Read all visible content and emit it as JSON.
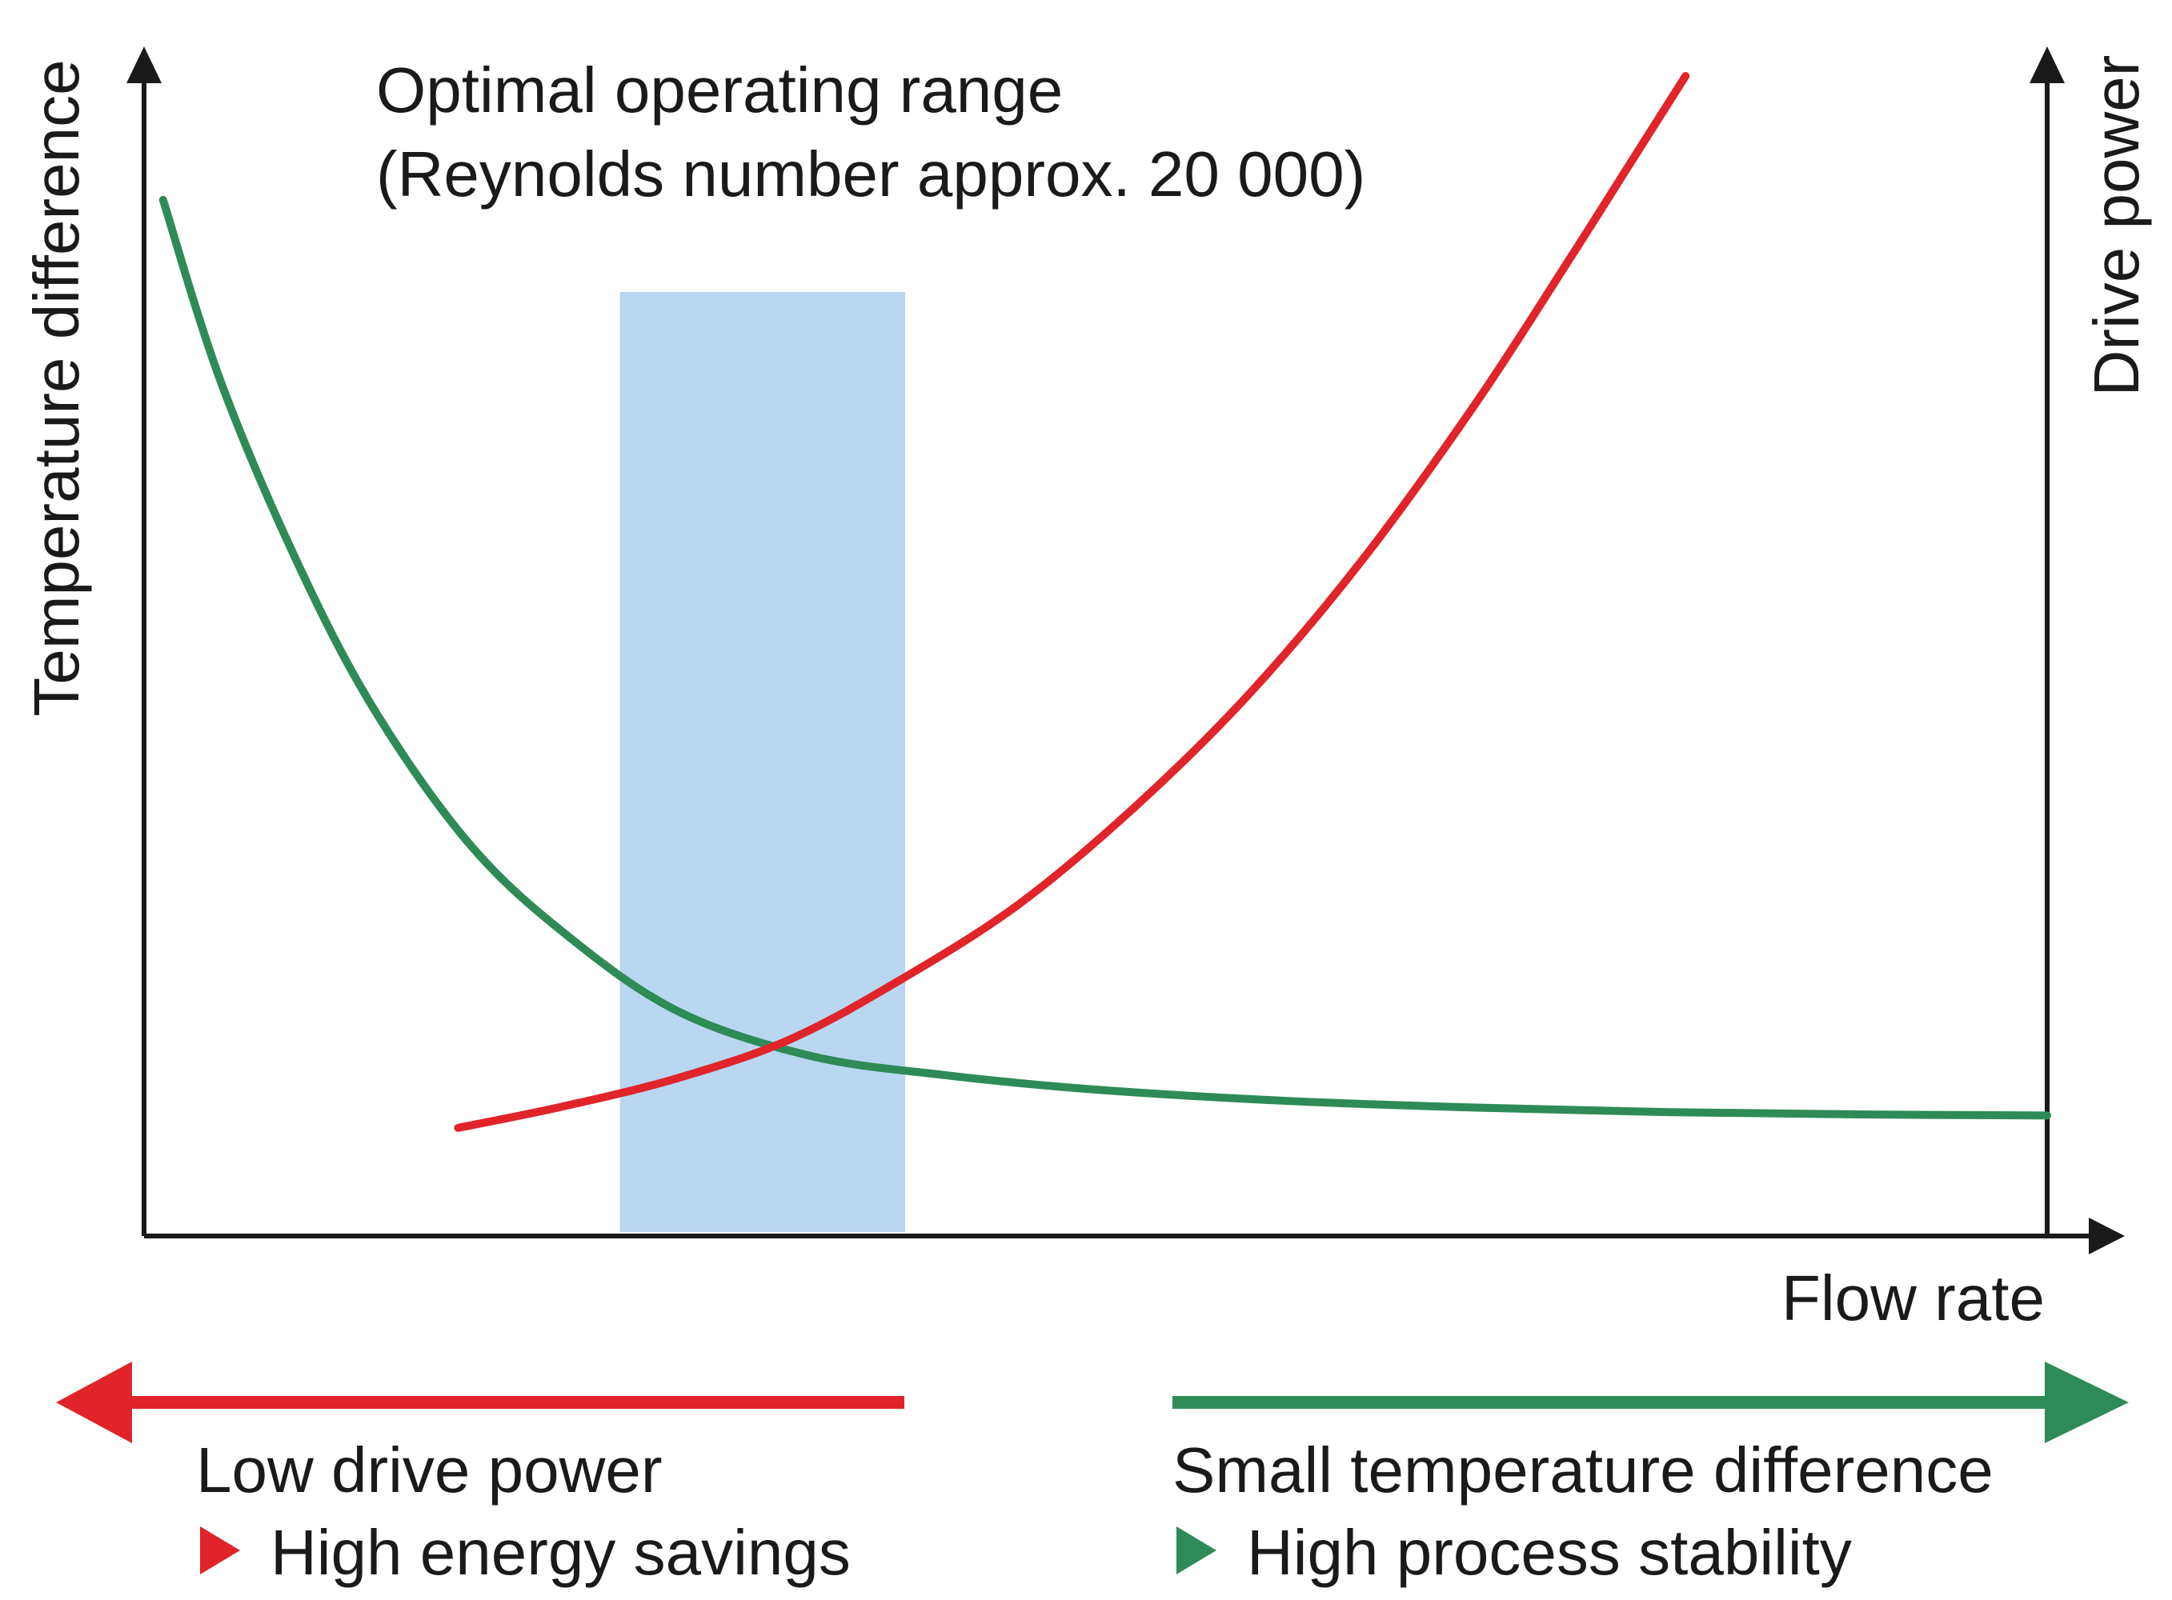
{
  "chart_data": {
    "type": "line",
    "title": "",
    "xlabel": "Flow rate",
    "ylabel_left": "Temperature difference",
    "ylabel_right": "Drive power",
    "grid": false,
    "legend": "none",
    "annotation": {
      "line1": "Optimal operating range",
      "line2": "(Reynolds number approx. 20 000)"
    },
    "highlight_range": {
      "x_start": 0.25,
      "x_end": 0.4,
      "color": "#b9d7f0"
    },
    "series": [
      {
        "color": "#2e8b57",
        "axis": "left",
        "points": [
          [
            0.01,
            0.92
          ],
          [
            0.04,
            0.76
          ],
          [
            0.08,
            0.6
          ],
          [
            0.12,
            0.47
          ],
          [
            0.17,
            0.35
          ],
          [
            0.22,
            0.27
          ],
          [
            0.28,
            0.2
          ],
          [
            0.35,
            0.16
          ],
          [
            0.42,
            0.143
          ],
          [
            0.5,
            0.13
          ],
          [
            0.6,
            0.12
          ],
          [
            0.7,
            0.114
          ],
          [
            0.8,
            0.11
          ],
          [
            0.9,
            0.108
          ],
          [
            1.0,
            0.107
          ]
        ]
      },
      {
        "color": "#e0242a",
        "axis": "right",
        "points": [
          [
            0.165,
            0.096
          ],
          [
            0.22,
            0.115
          ],
          [
            0.28,
            0.14
          ],
          [
            0.34,
            0.175
          ],
          [
            0.4,
            0.23
          ],
          [
            0.46,
            0.295
          ],
          [
            0.52,
            0.38
          ],
          [
            0.58,
            0.48
          ],
          [
            0.64,
            0.6
          ],
          [
            0.7,
            0.74
          ],
          [
            0.75,
            0.87
          ],
          [
            0.78,
            0.95
          ],
          [
            0.81,
            1.03
          ]
        ]
      }
    ],
    "xlim": [
      0,
      1
    ],
    "ylim": [
      0,
      1.03
    ]
  },
  "footer": {
    "left": {
      "color": "#e0242a",
      "line1": "Low drive power",
      "line2": "High energy savings"
    },
    "right": {
      "color": "#2e8b57",
      "line1": "Small temperature difference",
      "line2": "High process stability"
    }
  }
}
